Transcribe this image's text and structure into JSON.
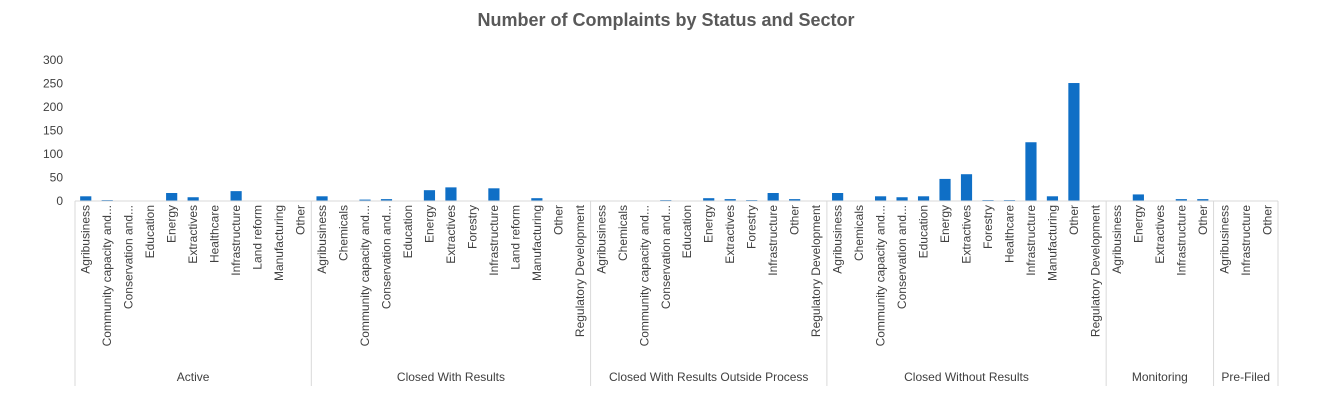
{
  "chart_data": {
    "type": "bar",
    "title": "Number of Complaints by Status and Sector",
    "xlabel": "",
    "ylabel": "",
    "ylim": [
      0,
      300
    ],
    "yticks": [
      0,
      50,
      100,
      150,
      200,
      250,
      300
    ],
    "grid": false,
    "legend": "none",
    "bar_color": "#0f6fc6",
    "groups": [
      {
        "name": "Active",
        "categories": [
          "Agribusiness",
          "Community capacity and...",
          "Conservation and...",
          "Education",
          "Energy",
          "Extractives",
          "Healthcare",
          "Infrastructure",
          "Land reform",
          "Manufacturing",
          "Other"
        ],
        "values": [
          10,
          2,
          1,
          1,
          17,
          8,
          1,
          21,
          1,
          1,
          1
        ]
      },
      {
        "name": "Closed With Results",
        "categories": [
          "Agribusiness",
          "Chemicals",
          "Community capacity and...",
          "Conservation and...",
          "Education",
          "Energy",
          "Extractives",
          "Forestry",
          "Infrastructure",
          "Land reform",
          "Manufacturing",
          "Other",
          "Regulatory Development"
        ],
        "values": [
          10,
          1,
          3,
          4,
          1,
          23,
          29,
          1,
          27,
          1,
          6,
          1,
          1
        ]
      },
      {
        "name": "Closed With Results Outside Process",
        "categories": [
          "Agribusiness",
          "Chemicals",
          "Community capacity and...",
          "Conservation and...",
          "Education",
          "Energy",
          "Extractives",
          "Forestry",
          "Infrastructure",
          "Other",
          "Regulatory Development"
        ],
        "values": [
          1,
          1,
          1,
          2,
          1,
          6,
          4,
          2,
          17,
          4,
          1
        ]
      },
      {
        "name": "Closed Without Results",
        "categories": [
          "Agribusiness",
          "Chemicals",
          "Community capacity and...",
          "Conservation and...",
          "Education",
          "Energy",
          "Extractives",
          "Forestry",
          "Healthcare",
          "Infrastructure",
          "Manufacturing",
          "Other",
          "Regulatory Development"
        ],
        "values": [
          17,
          1,
          10,
          8,
          10,
          47,
          57,
          2,
          2,
          125,
          10,
          251,
          1
        ]
      },
      {
        "name": "Monitoring",
        "categories": [
          "Agribusiness",
          "Energy",
          "Extractives",
          "Infrastructure",
          "Other"
        ],
        "values": [
          1,
          14,
          1,
          4,
          4
        ]
      },
      {
        "name": "Pre-Filed",
        "categories": [
          "Agribusiness",
          "Infrastructure",
          "Other"
        ],
        "values": [
          1,
          1,
          1
        ]
      }
    ]
  }
}
